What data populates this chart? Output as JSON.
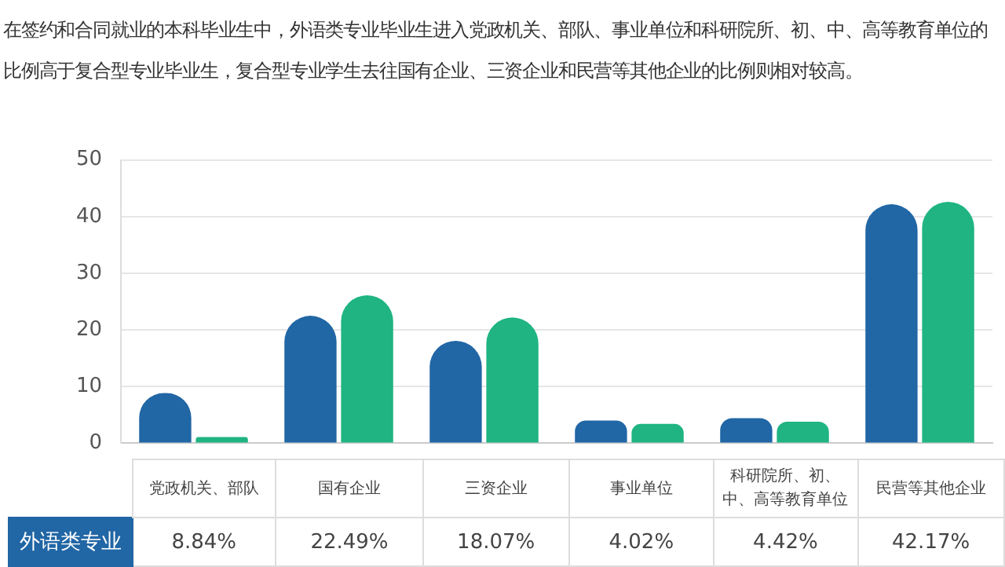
{
  "chart_data": {
    "type": "bar",
    "title": "在签约和合同就业的本科毕业生中，外语类专业毕业生进入党政机关、部队、事业单位和科研院所、初、中、高等教育单位的比例高于复合型专业毕业生，复合型专业学生去往国有企业、三资企业和民营等其他企业的比例则相对较高。",
    "categories": [
      "党政机关、部队",
      "国有企业",
      "三资企业",
      "事业单位",
      "科研院所、初、中、高等教育单位",
      "民营等其他企业"
    ],
    "series": [
      {
        "name": "外语类专业",
        "color": "#2166a5",
        "values": [
          8.84,
          22.49,
          18.07,
          4.02,
          4.42,
          42.17
        ],
        "value_labels": [
          "8.84%",
          "22.49%",
          "18.07%",
          "4.02%",
          "4.42%",
          "42.17%"
        ]
      },
      {
        "color": "#1fb481",
        "values": [
          1.1,
          26.1,
          22.2,
          3.4,
          3.8,
          42.6
        ]
      }
    ],
    "ylim": [
      0,
      50
    ],
    "yticks": [
      0,
      10,
      20,
      30,
      40,
      50
    ],
    "grid": "y"
  }
}
